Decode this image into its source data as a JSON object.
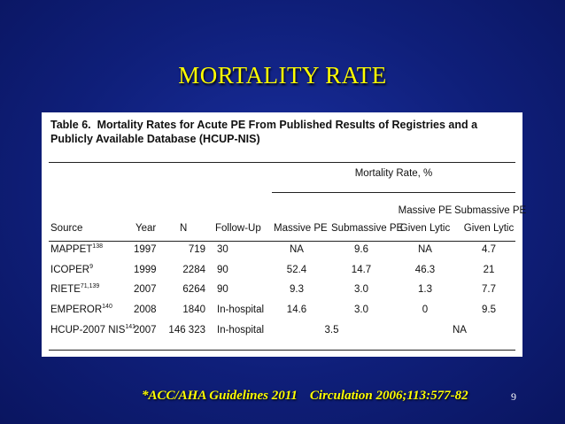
{
  "slide": {
    "title": "MORTALITY RATE",
    "footer_ref1": "*ACC/AHA Guidelines 2011",
    "footer_ref2": "Circulation 2006;113:577-82",
    "page_number": "9"
  },
  "table": {
    "caption_label": "Table 6.",
    "caption_text": "Mortality Rates for Acute PE From Published Results of Registries and a Publicly Available Database (HCUP-NIS)",
    "group_header": "Mortality Rate, %",
    "headers": {
      "source": "Source",
      "year": "Year",
      "n": "N",
      "followup": "Follow-Up",
      "massive": "Massive PE",
      "submassive": "Submassive PE",
      "massive_lytic": [
        "Massive PE",
        "Given Lytic"
      ],
      "submassive_lytic": [
        "Submassive PE",
        "Given Lytic"
      ]
    },
    "rows": [
      {
        "source": "MAPPET",
        "sup": "138",
        "year": "1997",
        "n": "719",
        "followup": "30",
        "massive": "NA",
        "submassive": "9.6",
        "massive_lytic": "NA",
        "submassive_lytic": "4.7"
      },
      {
        "source": "ICOPER",
        "sup": "9",
        "year": "1999",
        "n": "2284",
        "followup": "90",
        "massive": "52.4",
        "submassive": "14.7",
        "massive_lytic": "46.3",
        "submassive_lytic": "21"
      },
      {
        "source": "RIETE",
        "sup": "71,139",
        "year": "2007",
        "n": "6264",
        "followup": "90",
        "massive": "9.3",
        "submassive": "3.0",
        "massive_lytic": "1.3",
        "submassive_lytic": "7.7"
      },
      {
        "source": "EMPEROR",
        "sup": "140",
        "year": "2008",
        "n": "1840",
        "followup": "In-hospital",
        "massive": "14.6",
        "submassive": "3.0",
        "massive_lytic": "0",
        "submassive_lytic": "9.5"
      },
      {
        "source": "HCUP-2007 NIS",
        "sup": "141",
        "year": "2007",
        "n": "146 323",
        "followup": "In-hospital",
        "combined_pe": "3.5",
        "combined_lytic": "NA"
      }
    ]
  }
}
